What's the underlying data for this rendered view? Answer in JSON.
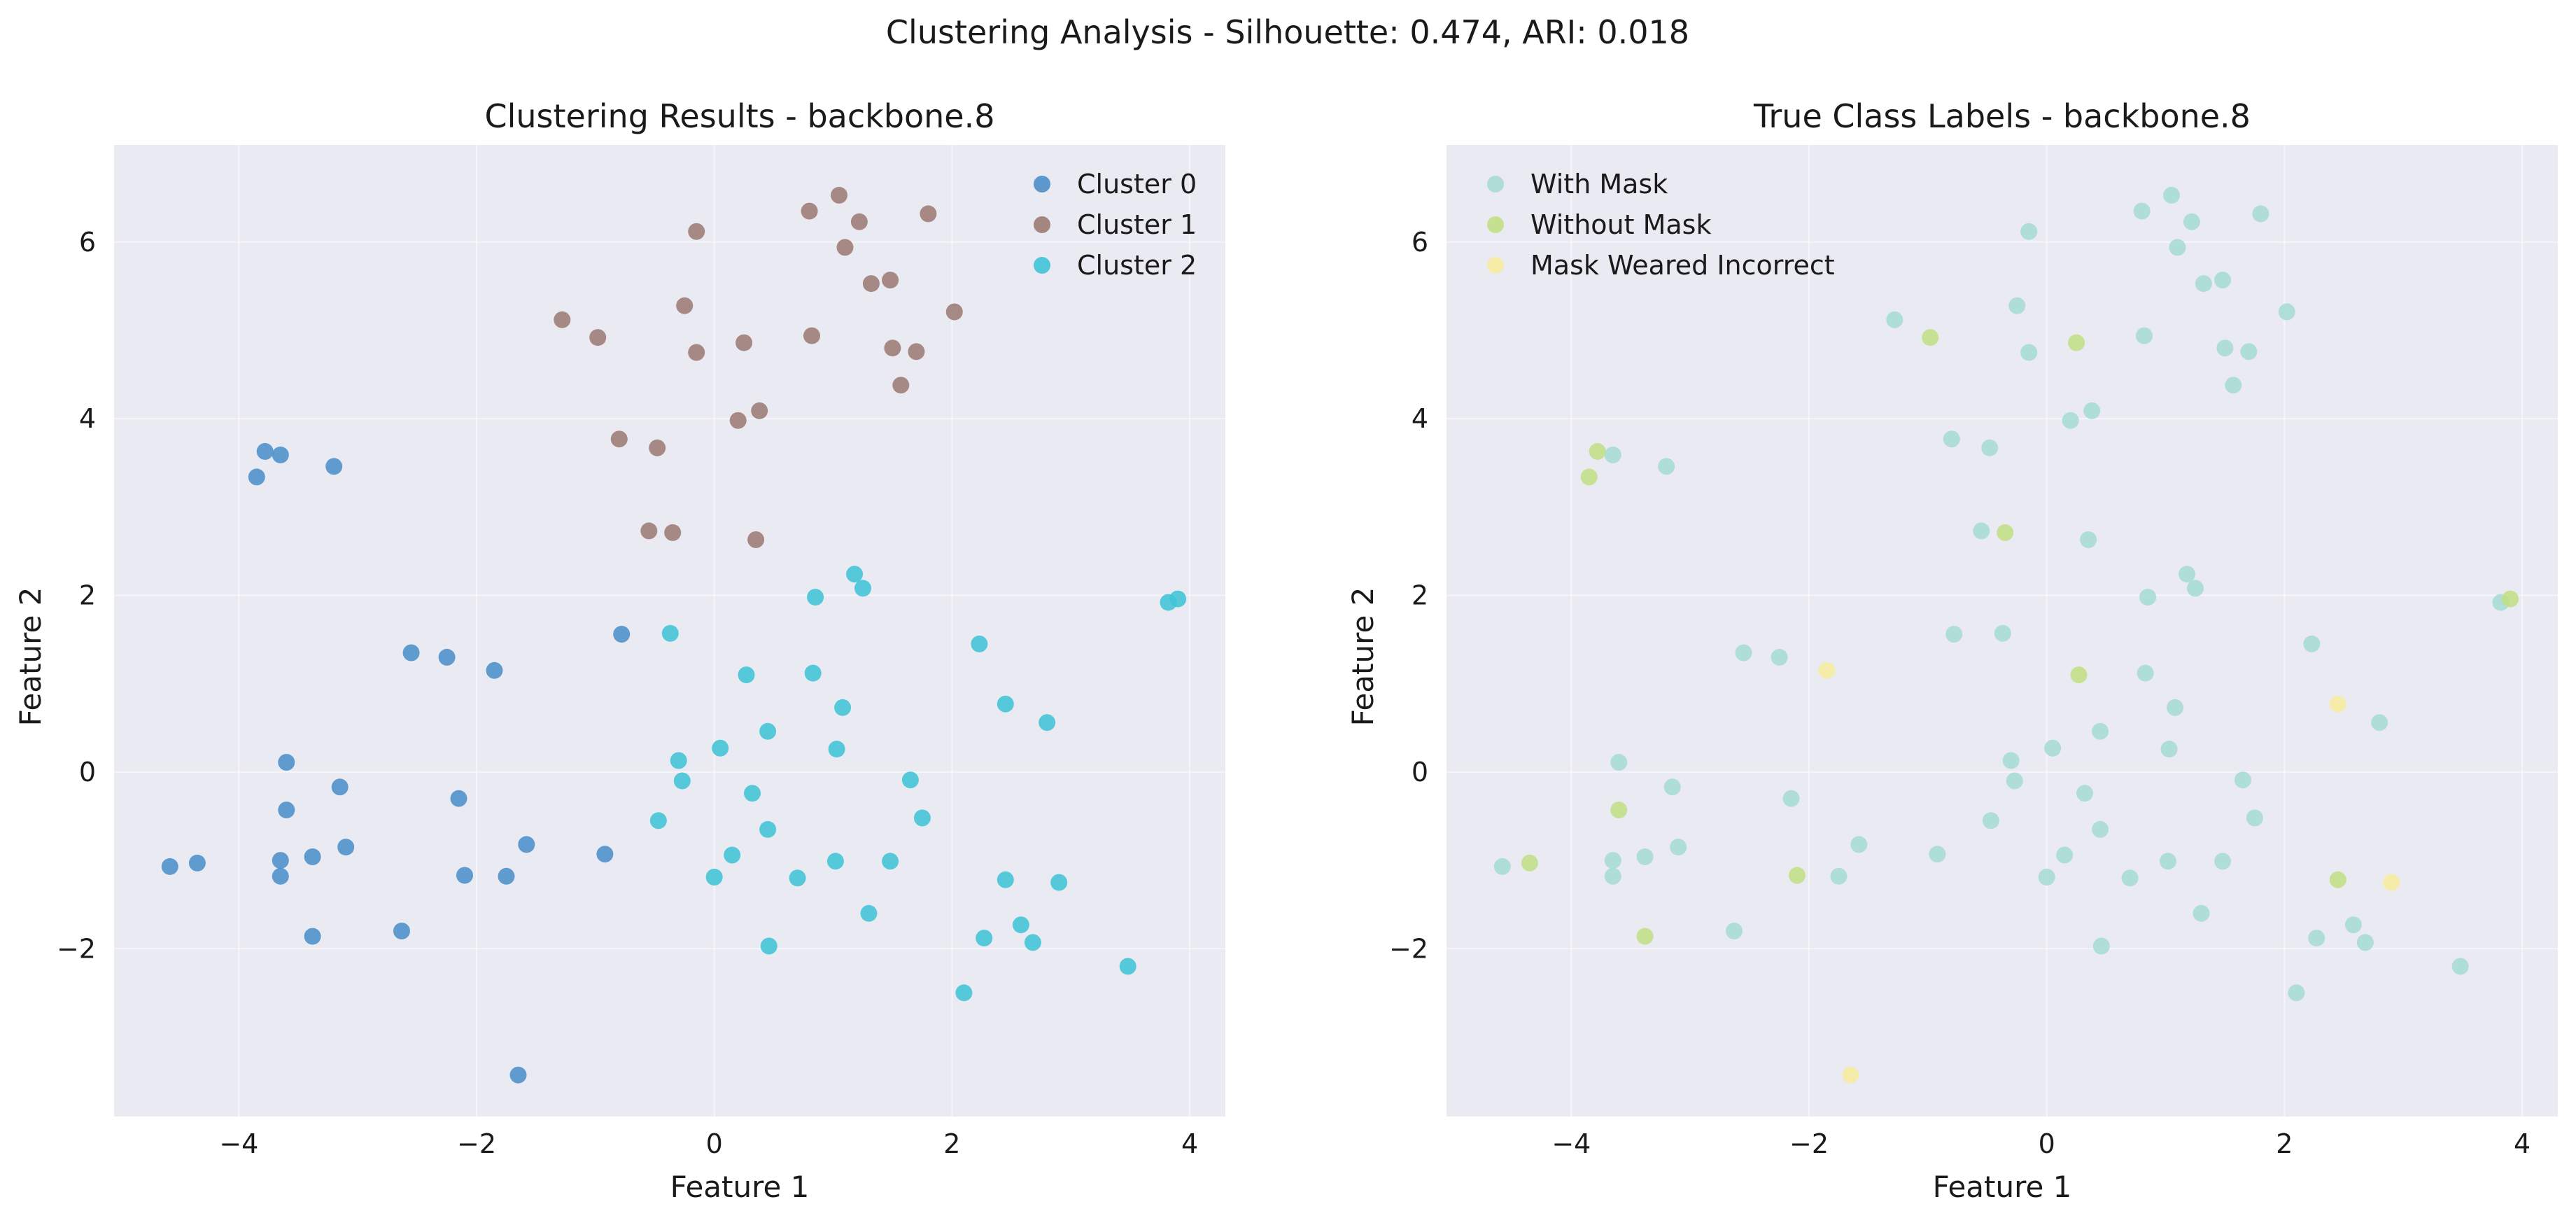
{
  "figure": {
    "suptitle": "Clustering Analysis - Silhouette: 0.474, ARI: 0.018"
  },
  "chart_data": [
    {
      "type": "scatter",
      "title": "Clustering Results - backbone.8",
      "xlabel": "Feature 1",
      "ylabel": "Feature 2",
      "xlim": [
        -5.05,
        4.3
      ],
      "ylim": [
        -3.9,
        7.1
      ],
      "xticks": [
        -4,
        -2,
        0,
        2,
        4
      ],
      "yticks": [
        -2,
        0,
        2,
        4,
        6
      ],
      "xtick_labels": [
        "−4",
        "−2",
        "0",
        "2",
        "4"
      ],
      "ytick_labels": [
        "−2",
        "0",
        "2",
        "4",
        "6"
      ],
      "grid": true,
      "legend_position": "top-right",
      "series": [
        {
          "name": "Cluster 0",
          "color": "#4c8fc9",
          "points": [
            [
              -3.78,
              3.63
            ],
            [
              -3.65,
              3.59
            ],
            [
              -3.85,
              3.34
            ],
            [
              -3.2,
              3.46
            ],
            [
              -2.55,
              1.35
            ],
            [
              -2.25,
              1.3
            ],
            [
              -1.85,
              1.15
            ],
            [
              -0.78,
              1.56
            ],
            [
              -3.6,
              0.11
            ],
            [
              -3.15,
              -0.17
            ],
            [
              -2.15,
              -0.3
            ],
            [
              -3.6,
              -0.43
            ],
            [
              -4.58,
              -1.07
            ],
            [
              -4.35,
              -1.03
            ],
            [
              -3.65,
              -1.0
            ],
            [
              -3.38,
              -0.96
            ],
            [
              -3.1,
              -0.85
            ],
            [
              -3.65,
              -1.18
            ],
            [
              -2.1,
              -1.17
            ],
            [
              -1.75,
              -1.18
            ],
            [
              -1.58,
              -0.82
            ],
            [
              -0.92,
              -0.93
            ],
            [
              -3.38,
              -1.86
            ],
            [
              -2.63,
              -1.8
            ],
            [
              -1.65,
              -3.43
            ]
          ]
        },
        {
          "name": "Cluster 1",
          "color": "#9c7b74",
          "points": [
            [
              -1.28,
              5.12
            ],
            [
              -0.98,
              4.92
            ],
            [
              -0.25,
              5.28
            ],
            [
              -0.15,
              6.12
            ],
            [
              -0.15,
              4.75
            ],
            [
              0.25,
              4.86
            ],
            [
              0.8,
              6.35
            ],
            [
              1.05,
              6.53
            ],
            [
              1.22,
              6.23
            ],
            [
              1.1,
              5.94
            ],
            [
              1.32,
              5.53
            ],
            [
              1.48,
              5.57
            ],
            [
              1.8,
              6.32
            ],
            [
              2.02,
              5.21
            ],
            [
              0.82,
              4.94
            ],
            [
              1.5,
              4.8
            ],
            [
              1.7,
              4.76
            ],
            [
              1.57,
              4.38
            ],
            [
              -0.8,
              3.77
            ],
            [
              -0.48,
              3.67
            ],
            [
              0.2,
              3.98
            ],
            [
              0.38,
              4.09
            ],
            [
              -0.55,
              2.73
            ],
            [
              -0.35,
              2.71
            ],
            [
              0.35,
              2.63
            ]
          ]
        },
        {
          "name": "Cluster 2",
          "color": "#40c4d6",
          "points": [
            [
              1.18,
              2.24
            ],
            [
              0.85,
              1.98
            ],
            [
              1.25,
              2.08
            ],
            [
              3.82,
              1.92
            ],
            [
              3.9,
              1.96
            ],
            [
              -0.37,
              1.57
            ],
            [
              2.23,
              1.45
            ],
            [
              0.27,
              1.1
            ],
            [
              0.83,
              1.12
            ],
            [
              1.08,
              0.73
            ],
            [
              2.45,
              0.77
            ],
            [
              2.8,
              0.56
            ],
            [
              0.45,
              0.46
            ],
            [
              0.05,
              0.27
            ],
            [
              1.03,
              0.26
            ],
            [
              -0.3,
              0.13
            ],
            [
              -0.27,
              -0.1
            ],
            [
              1.65,
              -0.09
            ],
            [
              0.32,
              -0.24
            ],
            [
              -0.47,
              -0.55
            ],
            [
              0.45,
              -0.65
            ],
            [
              1.75,
              -0.52
            ],
            [
              0.15,
              -0.94
            ],
            [
              1.02,
              -1.01
            ],
            [
              1.48,
              -1.01
            ],
            [
              0.0,
              -1.19
            ],
            [
              0.7,
              -1.2
            ],
            [
              2.45,
              -1.22
            ],
            [
              2.9,
              -1.25
            ],
            [
              1.3,
              -1.6
            ],
            [
              2.58,
              -1.73
            ],
            [
              2.27,
              -1.88
            ],
            [
              2.68,
              -1.93
            ],
            [
              0.46,
              -1.97
            ],
            [
              3.48,
              -2.2
            ],
            [
              2.1,
              -2.5
            ]
          ]
        }
      ]
    },
    {
      "type": "scatter",
      "title": "True Class Labels - backbone.8",
      "xlabel": "Feature 1",
      "ylabel": "Feature 2",
      "xlim": [
        -5.05,
        4.3
      ],
      "ylim": [
        -3.9,
        7.1
      ],
      "xticks": [
        -4,
        -2,
        0,
        2,
        4
      ],
      "yticks": [
        -2,
        0,
        2,
        4,
        6
      ],
      "xtick_labels": [
        "−4",
        "−2",
        "0",
        "2",
        "4"
      ],
      "ytick_labels": [
        "−2",
        "0",
        "2",
        "4",
        "6"
      ],
      "grid": true,
      "legend_position": "top-left",
      "series": [
        {
          "name": "With Mask",
          "color": "#a6dbd3",
          "points": [
            [
              -3.65,
              3.59
            ],
            [
              -3.2,
              3.46
            ],
            [
              -2.55,
              1.35
            ],
            [
              -2.25,
              1.3
            ],
            [
              -0.78,
              1.56
            ],
            [
              -3.6,
              0.11
            ],
            [
              -3.15,
              -0.17
            ],
            [
              -2.15,
              -0.3
            ],
            [
              -4.58,
              -1.07
            ],
            [
              -3.65,
              -1.0
            ],
            [
              -3.38,
              -0.96
            ],
            [
              -3.1,
              -0.85
            ],
            [
              -3.65,
              -1.18
            ],
            [
              -1.75,
              -1.18
            ],
            [
              -1.58,
              -0.82
            ],
            [
              -0.92,
              -0.93
            ],
            [
              -2.63,
              -1.8
            ],
            [
              -1.28,
              5.12
            ],
            [
              -0.25,
              5.28
            ],
            [
              -0.15,
              6.12
            ],
            [
              -0.15,
              4.75
            ],
            [
              0.8,
              6.35
            ],
            [
              1.05,
              6.53
            ],
            [
              1.22,
              6.23
            ],
            [
              1.1,
              5.94
            ],
            [
              1.32,
              5.53
            ],
            [
              1.48,
              5.57
            ],
            [
              1.8,
              6.32
            ],
            [
              2.02,
              5.21
            ],
            [
              0.82,
              4.94
            ],
            [
              1.5,
              4.8
            ],
            [
              1.7,
              4.76
            ],
            [
              1.57,
              4.38
            ],
            [
              -0.8,
              3.77
            ],
            [
              -0.48,
              3.67
            ],
            [
              0.2,
              3.98
            ],
            [
              0.38,
              4.09
            ],
            [
              -0.55,
              2.73
            ],
            [
              0.35,
              2.63
            ],
            [
              1.18,
              2.24
            ],
            [
              0.85,
              1.98
            ],
            [
              1.25,
              2.08
            ],
            [
              3.82,
              1.92
            ],
            [
              -0.37,
              1.57
            ],
            [
              2.23,
              1.45
            ],
            [
              0.83,
              1.12
            ],
            [
              1.08,
              0.73
            ],
            [
              2.8,
              0.56
            ],
            [
              0.45,
              0.46
            ],
            [
              0.05,
              0.27
            ],
            [
              1.03,
              0.26
            ],
            [
              -0.3,
              0.13
            ],
            [
              -0.27,
              -0.1
            ],
            [
              1.65,
              -0.09
            ],
            [
              0.32,
              -0.24
            ],
            [
              -0.47,
              -0.55
            ],
            [
              0.45,
              -0.65
            ],
            [
              1.75,
              -0.52
            ],
            [
              0.15,
              -0.94
            ],
            [
              1.02,
              -1.01
            ],
            [
              1.48,
              -1.01
            ],
            [
              0.0,
              -1.19
            ],
            [
              0.7,
              -1.2
            ],
            [
              1.3,
              -1.6
            ],
            [
              2.58,
              -1.73
            ],
            [
              2.27,
              -1.88
            ],
            [
              2.68,
              -1.93
            ],
            [
              0.46,
              -1.97
            ],
            [
              3.48,
              -2.2
            ],
            [
              2.1,
              -2.5
            ]
          ]
        },
        {
          "name": "Without Mask",
          "color": "#c2df86",
          "points": [
            [
              -3.78,
              3.63
            ],
            [
              -3.85,
              3.34
            ],
            [
              -3.6,
              -0.43
            ],
            [
              -4.35,
              -1.03
            ],
            [
              -2.1,
              -1.17
            ],
            [
              -3.38,
              -1.86
            ],
            [
              -0.98,
              4.92
            ],
            [
              0.25,
              4.86
            ],
            [
              -0.35,
              2.71
            ],
            [
              0.27,
              1.1
            ],
            [
              3.9,
              1.96
            ],
            [
              2.45,
              -1.22
            ]
          ]
        },
        {
          "name": "Mask Weared Incorrect",
          "color": "#f7ec9f",
          "points": [
            [
              -1.85,
              1.15
            ],
            [
              2.45,
              0.77
            ],
            [
              2.9,
              -1.25
            ],
            [
              -1.65,
              -3.43
            ]
          ]
        }
      ]
    }
  ]
}
